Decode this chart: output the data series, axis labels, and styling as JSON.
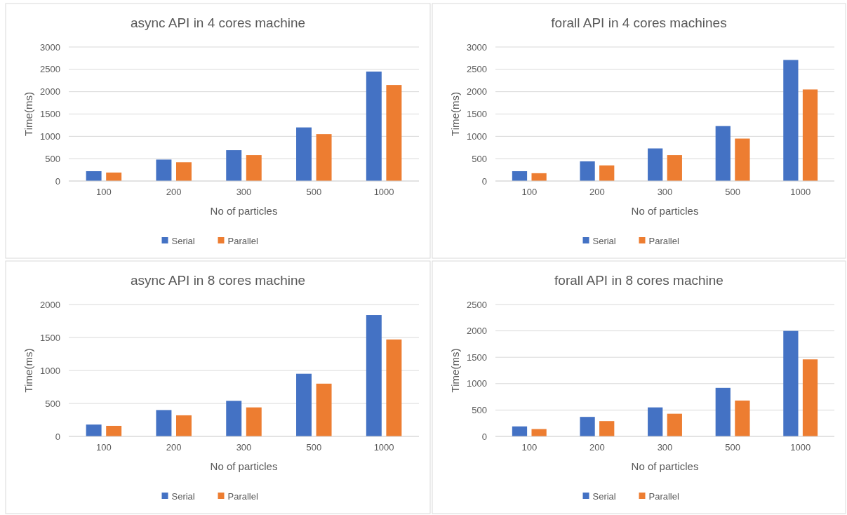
{
  "chart_data": [
    {
      "type": "bar",
      "title": "async API in 4 cores machine",
      "xlabel": "No of particles",
      "ylabel": "Time(ms)",
      "categories": [
        "100",
        "200",
        "300",
        "500",
        "1000"
      ],
      "series": [
        {
          "name": "Serial",
          "color": "#4472c4",
          "values": [
            220,
            480,
            690,
            1200,
            2450
          ]
        },
        {
          "name": "Parallel",
          "color": "#ed7d31",
          "values": [
            190,
            420,
            580,
            1050,
            2150
          ]
        }
      ],
      "ylim": [
        0,
        3000
      ],
      "yticks": [
        0,
        500,
        1000,
        1500,
        2000,
        2500,
        3000
      ],
      "grid": "y",
      "legend": "bottom"
    },
    {
      "type": "bar",
      "title": "forall API in 4 cores machines",
      "xlabel": "No of particles",
      "ylabel": "Time(ms)",
      "categories": [
        "100",
        "200",
        "300",
        "500",
        "1000"
      ],
      "series": [
        {
          "name": "Serial",
          "color": "#4472c4",
          "values": [
            220,
            440,
            730,
            1230,
            2710
          ]
        },
        {
          "name": "Parallel",
          "color": "#ed7d31",
          "values": [
            175,
            350,
            580,
            950,
            2050
          ]
        }
      ],
      "ylim": [
        0,
        3000
      ],
      "yticks": [
        0,
        500,
        1000,
        1500,
        2000,
        2500,
        3000
      ],
      "grid": "y",
      "legend": "bottom"
    },
    {
      "type": "bar",
      "title": "async API in 8 cores machine",
      "xlabel": "No of particles",
      "ylabel": "Time(ms)",
      "categories": [
        "100",
        "200",
        "300",
        "500",
        "1000"
      ],
      "series": [
        {
          "name": "Serial",
          "color": "#4472c4",
          "values": [
            180,
            400,
            540,
            950,
            1840
          ]
        },
        {
          "name": "Parallel",
          "color": "#ed7d31",
          "values": [
            160,
            320,
            440,
            800,
            1470
          ]
        }
      ],
      "ylim": [
        0,
        2000
      ],
      "yticks": [
        0,
        500,
        1000,
        1500,
        2000
      ],
      "grid": "y",
      "legend": "bottom"
    },
    {
      "type": "bar",
      "title": "forall API in 8 cores machine",
      "xlabel": "No of particles",
      "ylabel": "Time(ms)",
      "categories": [
        "100",
        "200",
        "300",
        "500",
        "1000"
      ],
      "series": [
        {
          "name": "Serial",
          "color": "#4472c4",
          "values": [
            190,
            370,
            550,
            920,
            2000
          ]
        },
        {
          "name": "Parallel",
          "color": "#ed7d31",
          "values": [
            140,
            290,
            430,
            680,
            1460
          ]
        }
      ],
      "ylim": [
        0,
        2500
      ],
      "yticks": [
        0,
        500,
        1000,
        1500,
        2000,
        2500
      ],
      "grid": "y",
      "legend": "bottom"
    }
  ]
}
